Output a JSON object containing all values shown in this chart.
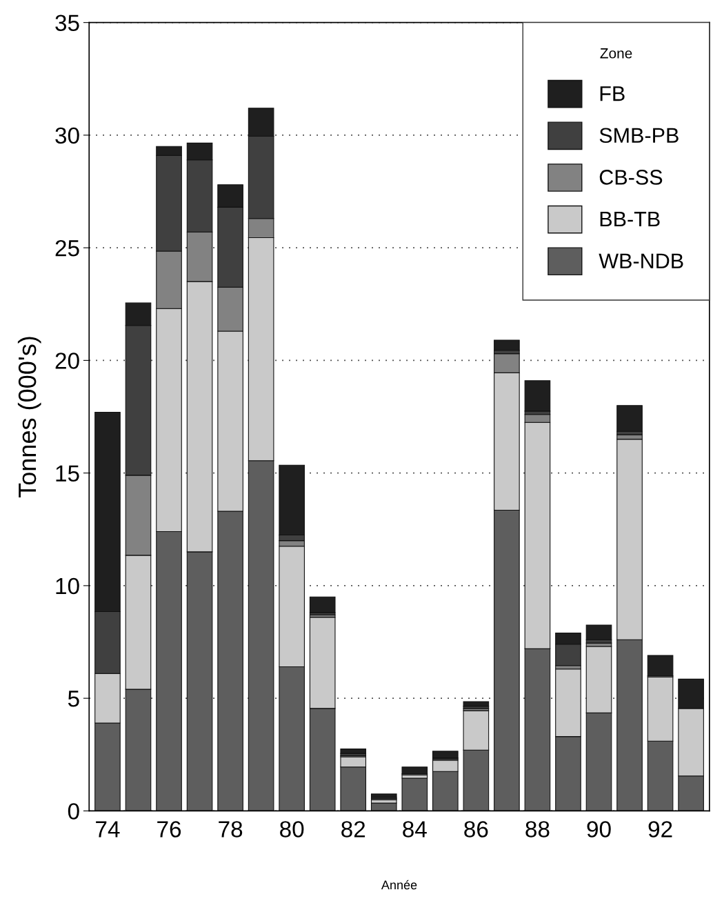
{
  "chart_data": {
    "type": "bar",
    "stacked": true,
    "xlabel": "Année",
    "ylabel": "Tonnes (000's)",
    "legend_title": "Zone",
    "categories": [
      "74",
      null,
      "76",
      null,
      "78",
      null,
      "80",
      null,
      "82",
      null,
      "84",
      null,
      "86",
      null,
      "88",
      null,
      "90",
      null,
      "92",
      null
    ],
    "series": [
      {
        "name": "WB-NDB",
        "color": "#5e5e5e",
        "values": [
          3.9,
          5.4,
          12.4,
          11.5,
          13.3,
          15.55,
          6.4,
          4.55,
          1.95,
          0.35,
          1.45,
          1.75,
          2.7,
          13.35,
          7.2,
          3.3,
          4.35,
          7.6,
          3.1,
          1.55
        ]
      },
      {
        "name": "BB-TB",
        "color": "#c9c9c9",
        "values": [
          2.2,
          5.95,
          9.9,
          12.0,
          8.0,
          9.9,
          5.35,
          4.05,
          0.45,
          0.15,
          0.15,
          0.5,
          1.75,
          6.1,
          10.05,
          3.0,
          2.95,
          8.9,
          2.85,
          3.0
        ]
      },
      {
        "name": "CB-SS",
        "color": "#828282",
        "values": [
          null,
          3.55,
          2.55,
          2.2,
          1.95,
          0.85,
          0.25,
          0.1,
          0.05,
          0.05,
          0.05,
          0.05,
          0.1,
          0.85,
          0.35,
          0.15,
          0.15,
          0.2,
          0.05,
          null
        ]
      },
      {
        "name": "SMB-PB",
        "color": "#404040",
        "values": [
          2.75,
          6.65,
          4.25,
          3.2,
          3.55,
          3.65,
          0.25,
          0.1,
          0.1,
          0.05,
          null,
          0.05,
          0.1,
          0.15,
          0.15,
          0.95,
          0.15,
          0.15,
          null,
          null
        ]
      },
      {
        "name": "FB",
        "color": "#1f1f1f",
        "values": [
          8.85,
          1.0,
          0.4,
          0.75,
          1.0,
          1.25,
          3.1,
          0.7,
          0.2,
          0.15,
          0.3,
          0.3,
          0.2,
          0.45,
          1.35,
          0.5,
          0.65,
          1.15,
          0.9,
          1.3
        ]
      }
    ],
    "ylim": [
      0,
      35
    ],
    "yticks": [
      0,
      5,
      10,
      15,
      20,
      25,
      30,
      35
    ],
    "grid": "y",
    "legend": "top right"
  }
}
